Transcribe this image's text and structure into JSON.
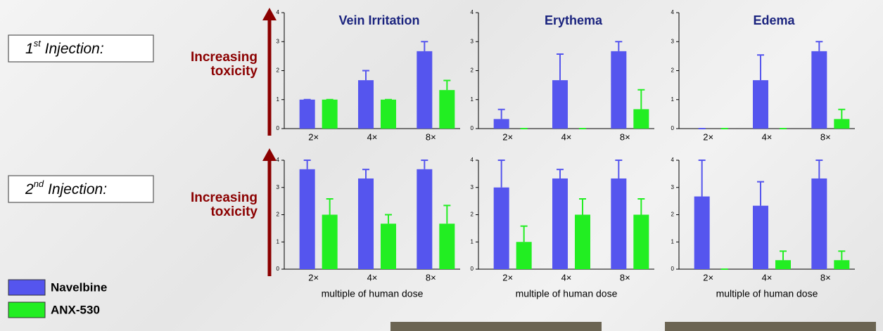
{
  "rows": [
    {
      "number": "1",
      "suffix": "st",
      "text": " Injection:",
      "side": [
        "Increasing",
        "toxicity"
      ]
    },
    {
      "number": "2",
      "suffix": "nd",
      "text": " Injection:",
      "side": [
        "Increasing",
        "toxicity"
      ]
    }
  ],
  "chart_data": [
    {
      "type": "bar",
      "title": "Vein Irritation",
      "categories": [
        "2×",
        "4×",
        "8×"
      ],
      "ylim": [
        0,
        4
      ],
      "yticks": [
        0,
        1,
        2,
        3,
        4
      ],
      "series": [
        {
          "name": "Navelbine",
          "color": "#5555ee",
          "values": [
            1,
            1.67,
            2.67
          ],
          "errors": [
            0,
            0.33,
            0.33
          ]
        },
        {
          "name": "ANX-530",
          "color": "#22ee22",
          "values": [
            1,
            1,
            1.33
          ],
          "errors": [
            0,
            0,
            0.33
          ]
        }
      ]
    },
    {
      "type": "bar",
      "title": "Erythema",
      "categories": [
        "2×",
        "4×",
        "8×"
      ],
      "ylim": [
        0,
        4
      ],
      "yticks": [
        0,
        1,
        2,
        3,
        4
      ],
      "series": [
        {
          "name": "Navelbine",
          "color": "#5555ee",
          "values": [
            0.33,
            1.67,
            2.67
          ],
          "errors": [
            0.33,
            0.9,
            0.33
          ]
        },
        {
          "name": "ANX-530",
          "color": "#22ee22",
          "values": [
            0,
            0,
            0.67
          ],
          "errors": [
            0,
            0,
            0.67
          ]
        }
      ]
    },
    {
      "type": "bar",
      "title": "Edema",
      "categories": [
        "2×",
        "4×",
        "8×"
      ],
      "ylim": [
        0,
        4
      ],
      "yticks": [
        0,
        1,
        2,
        3,
        4
      ],
      "series": [
        {
          "name": "Navelbine",
          "color": "#5555ee",
          "values": [
            0,
            1.67,
            2.67
          ],
          "errors": [
            0,
            0.87,
            0.33
          ]
        },
        {
          "name": "ANX-530",
          "color": "#22ee22",
          "values": [
            0,
            0,
            0.33
          ],
          "errors": [
            0,
            0,
            0.33
          ]
        }
      ]
    },
    {
      "type": "bar",
      "xlabel": "multiple of  human dose",
      "categories": [
        "2×",
        "4×",
        "8×"
      ],
      "ylim": [
        0,
        4
      ],
      "yticks": [
        0,
        1,
        2,
        3,
        4
      ],
      "series": [
        {
          "name": "Navelbine",
          "color": "#5555ee",
          "values": [
            3.67,
            3.33,
            3.67
          ],
          "errors": [
            0.33,
            0.33,
            0.33
          ]
        },
        {
          "name": "ANX-530",
          "color": "#22ee22",
          "values": [
            2,
            1.67,
            1.67
          ],
          "errors": [
            0.58,
            0.33,
            0.67
          ]
        }
      ]
    },
    {
      "type": "bar",
      "xlabel": "multiple of  human dose",
      "categories": [
        "2×",
        "4×",
        "8×"
      ],
      "ylim": [
        0,
        4
      ],
      "yticks": [
        0,
        1,
        2,
        3,
        4
      ],
      "series": [
        {
          "name": "Navelbine",
          "color": "#5555ee",
          "values": [
            3,
            3.33,
            3.33
          ],
          "errors": [
            1,
            0.33,
            0.67
          ]
        },
        {
          "name": "ANX-530",
          "color": "#22ee22",
          "values": [
            1,
            2,
            2
          ],
          "errors": [
            0.58,
            0.58,
            0.58
          ]
        }
      ]
    },
    {
      "type": "bar",
      "xlabel": "multiple of  human dose",
      "categories": [
        "2×",
        "4×",
        "8×"
      ],
      "ylim": [
        0,
        4
      ],
      "yticks": [
        0,
        1,
        2,
        3,
        4
      ],
      "series": [
        {
          "name": "Navelbine",
          "color": "#5555ee",
          "values": [
            2.67,
            2.33,
            3.33
          ],
          "errors": [
            1.33,
            0.88,
            0.67
          ]
        },
        {
          "name": "ANX-530",
          "color": "#22ee22",
          "values": [
            0,
            0.33,
            0.33
          ],
          "errors": [
            0,
            0.33,
            0.33
          ]
        }
      ]
    }
  ]
}
